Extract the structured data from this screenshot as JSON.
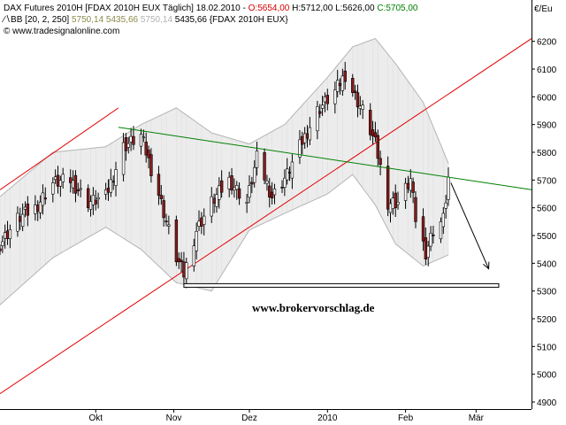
{
  "header": {
    "line1_name": "DAX Futures 2010H [FDAX 2010H EUX  Täglich] 18.02.2010 - ",
    "open_label": "O:5654,00",
    "hl_label": " H:5712,00 L:5626,00 ",
    "close_label": "C:5705,00",
    "line2_prefix": "BB [20, 2, 250] ",
    "bb_mid": "5750,14",
    "bb_low": " 5435,66",
    "bb_high": " 5750,14",
    "bb_suffix": " 5435,66 {FDAX 2010H EUX}",
    "line3": "© www.tradesignalonline.com"
  },
  "currency_label": "€/Eu",
  "watermark": "www.brokervorschlag.de",
  "colors": {
    "up": "#ffffff",
    "down": "#8b1a1a",
    "trend_red": "#e00000",
    "trend_green": "#008000",
    "bb_band": "#b4b4b4",
    "bb_fill": "#ececec"
  },
  "chart_data": {
    "type": "candlestick",
    "ylim": [
      4900,
      6250
    ],
    "y_ticks": [
      4900,
      5000,
      5100,
      5200,
      5300,
      5400,
      5500,
      5600,
      5700,
      5800,
      5900,
      6000,
      6100,
      6200
    ],
    "x_start": "2009-08-24",
    "x_end": "2010-03-23",
    "x_ticks": [
      {
        "label": "Okt",
        "date": "2009-10-01"
      },
      {
        "label": "Nov",
        "date": "2009-11-01"
      },
      {
        "label": "Dez",
        "date": "2009-12-01"
      },
      {
        "label": "2010",
        "date": "2010-01-01"
      },
      {
        "label": "Feb",
        "date": "2010-02-01"
      },
      {
        "label": "Mär",
        "date": "2010-03-01"
      }
    ],
    "price_keypoints": [
      [
        "2009-08-24",
        5470
      ],
      [
        "2009-08-31",
        5560
      ],
      [
        "2009-09-07",
        5600
      ],
      [
        "2009-09-14",
        5690
      ],
      [
        "2009-09-21",
        5700
      ],
      [
        "2009-09-28",
        5620
      ],
      [
        "2009-10-05",
        5640
      ],
      [
        "2009-10-12",
        5820
      ],
      [
        "2009-10-19",
        5860
      ],
      [
        "2009-10-26",
        5650
      ],
      [
        "2009-11-02",
        5420
      ],
      [
        "2009-11-05",
        5360
      ],
      [
        "2009-11-10",
        5520
      ],
      [
        "2009-11-16",
        5620
      ],
      [
        "2009-11-23",
        5700
      ],
      [
        "2009-11-30",
        5620
      ],
      [
        "2009-12-04",
        5780
      ],
      [
        "2009-12-10",
        5640
      ],
      [
        "2009-12-16",
        5720
      ],
      [
        "2009-12-21",
        5820
      ],
      [
        "2009-12-28",
        5950
      ],
      [
        "2010-01-04",
        6020
      ],
      [
        "2010-01-08",
        6080
      ],
      [
        "2010-01-12",
        6000
      ],
      [
        "2010-01-15",
        5950
      ],
      [
        "2010-01-20",
        5830
      ],
      [
        "2010-01-25",
        5620
      ],
      [
        "2010-01-29",
        5620
      ],
      [
        "2010-02-03",
        5700
      ],
      [
        "2010-02-05",
        5560
      ],
      [
        "2010-02-09",
        5440
      ],
      [
        "2010-02-12",
        5520
      ],
      [
        "2010-02-16",
        5560
      ],
      [
        "2010-02-18",
        5705
      ]
    ],
    "bb_upper_keypoints": [
      [
        "2009-08-24",
        5640
      ],
      [
        "2009-09-14",
        5800
      ],
      [
        "2009-10-05",
        5820
      ],
      [
        "2009-10-19",
        5900
      ],
      [
        "2009-11-02",
        5960
      ],
      [
        "2009-11-16",
        5870
      ],
      [
        "2009-12-01",
        5830
      ],
      [
        "2009-12-15",
        5900
      ],
      [
        "2010-01-01",
        6070
      ],
      [
        "2010-01-11",
        6180
      ],
      [
        "2010-01-20",
        6210
      ],
      [
        "2010-01-28",
        6120
      ],
      [
        "2010-02-08",
        5980
      ],
      [
        "2010-02-18",
        5760
      ]
    ],
    "bb_lower_keypoints": [
      [
        "2009-08-24",
        5250
      ],
      [
        "2009-09-14",
        5420
      ],
      [
        "2009-10-05",
        5530
      ],
      [
        "2009-10-19",
        5450
      ],
      [
        "2009-11-02",
        5330
      ],
      [
        "2009-11-16",
        5300
      ],
      [
        "2009-12-01",
        5520
      ],
      [
        "2009-12-15",
        5580
      ],
      [
        "2010-01-01",
        5650
      ],
      [
        "2010-01-11",
        5720
      ],
      [
        "2010-01-20",
        5610
      ],
      [
        "2010-01-28",
        5470
      ],
      [
        "2010-02-08",
        5390
      ],
      [
        "2010-02-18",
        5430
      ]
    ],
    "annotations": {
      "red_upper": [
        [
          "2009-08-24",
          5665
        ],
        [
          "2009-10-10",
          5960
        ]
      ],
      "red_lower": [
        [
          "2009-08-24",
          4930
        ],
        [
          "2010-03-23",
          6210
        ]
      ],
      "green_line": [
        [
          "2009-10-10",
          5890
        ],
        [
          "2010-03-23",
          5665
        ]
      ],
      "support_line": [
        [
          "2009-11-05",
          5320
        ],
        [
          "2010-03-10",
          5320
        ]
      ],
      "arrow": [
        [
          "2010-02-19",
          5690
        ],
        [
          "2010-03-06",
          5380
        ]
      ]
    }
  }
}
